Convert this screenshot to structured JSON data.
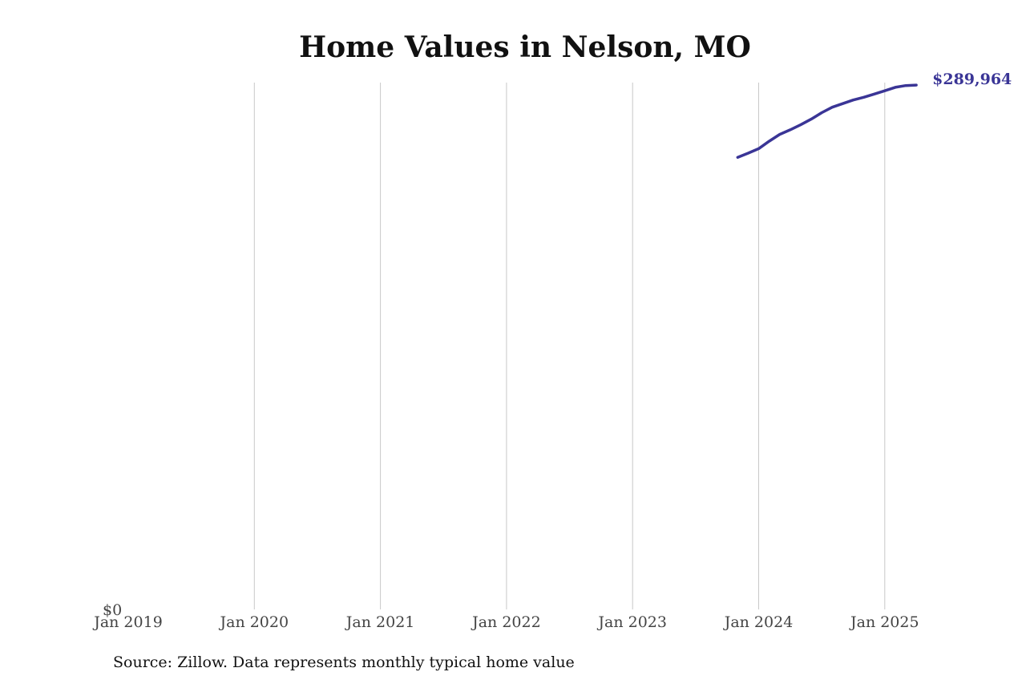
{
  "chart_data": {
    "type": "line",
    "title": "Home Values in Nelson, MO",
    "xlabel": "",
    "ylabel": "",
    "x_ticks": [
      "Jan 2019",
      "Jan 2020",
      "Jan 2021",
      "Jan 2022",
      "Jan 2023",
      "Jan 2024",
      "Jan 2025"
    ],
    "y_ticks": [
      "$0"
    ],
    "ylim": [
      0,
      290000
    ],
    "grid": "vertical",
    "series": [
      {
        "color": "#3a3596",
        "end_label": "$289,964",
        "x": [
          "2023-11",
          "2023-12",
          "2024-01",
          "2024-02",
          "2024-03",
          "2024-04",
          "2024-05",
          "2024-06",
          "2024-07",
          "2024-08",
          "2024-09",
          "2024-10",
          "2024-11",
          "2024-12",
          "2025-01",
          "2025-02",
          "2025-03",
          "2025-04"
        ],
        "values": [
          250000,
          252300,
          254800,
          258900,
          262700,
          265200,
          268000,
          271100,
          274700,
          277700,
          279700,
          281700,
          283200,
          285000,
          286800,
          288700,
          289700,
          289964
        ]
      }
    ]
  },
  "source_note": "Source: Zillow. Data represents monthly typical home value"
}
